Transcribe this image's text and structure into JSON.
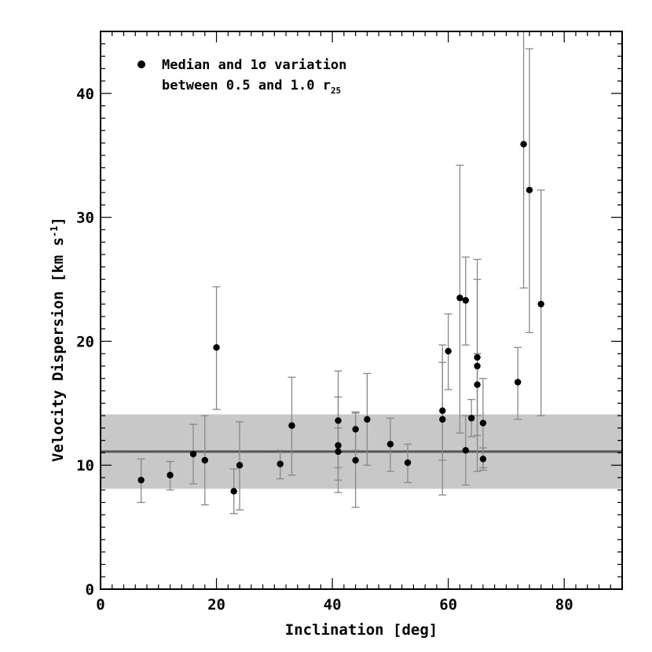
{
  "chart_data": {
    "type": "scatter",
    "xlabel": "Inclination [deg]",
    "ylabel": "Velocity Dispersion [km s",
    "ylabel_superscript": "-1",
    "ylabel_tail": "]",
    "xlim": [
      0,
      90
    ],
    "ylim": [
      0,
      45
    ],
    "x_ticks": [
      0,
      20,
      40,
      60,
      80
    ],
    "y_ticks": [
      0,
      10,
      20,
      30,
      40
    ],
    "grid": false,
    "legend_position": "top-left",
    "legend": {
      "line1": "Median and 1σ variation",
      "line2_prefix": "between 0.5 and 1.0 r",
      "line2_subscript": "25"
    },
    "reference_line": {
      "value": 11.1,
      "color": "#555555"
    },
    "reference_band": {
      "low": 8.1,
      "high": 14.1,
      "color": "#c8c8c8"
    },
    "marker_color": "#000000",
    "errorbar_color": "#888888",
    "series": [
      {
        "points": [
          {
            "x": 7,
            "y": 8.8,
            "lo": 7.0,
            "hi": 10.5
          },
          {
            "x": 12,
            "y": 9.2,
            "lo": 8.0,
            "hi": 10.3
          },
          {
            "x": 16,
            "y": 10.9,
            "lo": 8.5,
            "hi": 13.3
          },
          {
            "x": 18,
            "y": 10.4,
            "lo": 6.8,
            "hi": 14.0
          },
          {
            "x": 20,
            "y": 19.5,
            "lo": 14.5,
            "hi": 24.4
          },
          {
            "x": 23,
            "y": 7.9,
            "lo": 6.1,
            "hi": 9.7
          },
          {
            "x": 24,
            "y": 10.0,
            "lo": 6.4,
            "hi": 13.5
          },
          {
            "x": 31,
            "y": 10.1,
            "lo": 8.9,
            "hi": 11.2
          },
          {
            "x": 33,
            "y": 13.2,
            "lo": 9.2,
            "hi": 17.1
          },
          {
            "x": 41,
            "y": 13.6,
            "lo": 9.8,
            "hi": 17.6
          },
          {
            "x": 41,
            "y": 11.6,
            "lo": 7.8,
            "hi": 15.5
          },
          {
            "x": 41,
            "y": 11.1,
            "lo": 8.8,
            "hi": 13.0
          },
          {
            "x": 44,
            "y": 12.9,
            "lo": 11.2,
            "hi": 14.3
          },
          {
            "x": 44,
            "y": 10.4,
            "lo": 6.6,
            "hi": 14.2
          },
          {
            "x": 46,
            "y": 13.7,
            "lo": 10.0,
            "hi": 17.4
          },
          {
            "x": 50,
            "y": 11.7,
            "lo": 9.5,
            "hi": 13.8
          },
          {
            "x": 53,
            "y": 10.2,
            "lo": 8.6,
            "hi": 11.7
          },
          {
            "x": 59,
            "y": 14.4,
            "lo": 10.4,
            "hi": 19.7
          },
          {
            "x": 59,
            "y": 13.7,
            "lo": 7.6,
            "hi": 18.3
          },
          {
            "x": 60,
            "y": 19.2,
            "lo": 16.1,
            "hi": 22.2
          },
          {
            "x": 62,
            "y": 23.5,
            "lo": 12.6,
            "hi": 34.2
          },
          {
            "x": 63,
            "y": 23.3,
            "lo": 19.7,
            "hi": 26.8
          },
          {
            "x": 63,
            "y": 11.2,
            "lo": 8.4,
            "hi": 14.0
          },
          {
            "x": 64,
            "y": 13.8,
            "lo": 12.3,
            "hi": 15.3
          },
          {
            "x": 65,
            "y": 18.7,
            "lo": 12.4,
            "hi": 25.0
          },
          {
            "x": 65,
            "y": 18.0,
            "lo": 9.5,
            "hi": 26.6
          },
          {
            "x": 65,
            "y": 16.5,
            "lo": 14.0,
            "hi": 19.0
          },
          {
            "x": 66,
            "y": 13.4,
            "lo": 9.8,
            "hi": 17.0
          },
          {
            "x": 66,
            "y": 10.5,
            "lo": 9.6,
            "hi": 11.4
          },
          {
            "x": 72,
            "y": 16.7,
            "lo": 13.7,
            "hi": 19.5
          },
          {
            "x": 73,
            "y": 35.9,
            "lo": 24.3,
            "hi": 45.0
          },
          {
            "x": 74,
            "y": 32.2,
            "lo": 20.7,
            "hi": 43.6
          },
          {
            "x": 76,
            "y": 23.0,
            "lo": 14.0,
            "hi": 32.2
          }
        ]
      }
    ]
  }
}
